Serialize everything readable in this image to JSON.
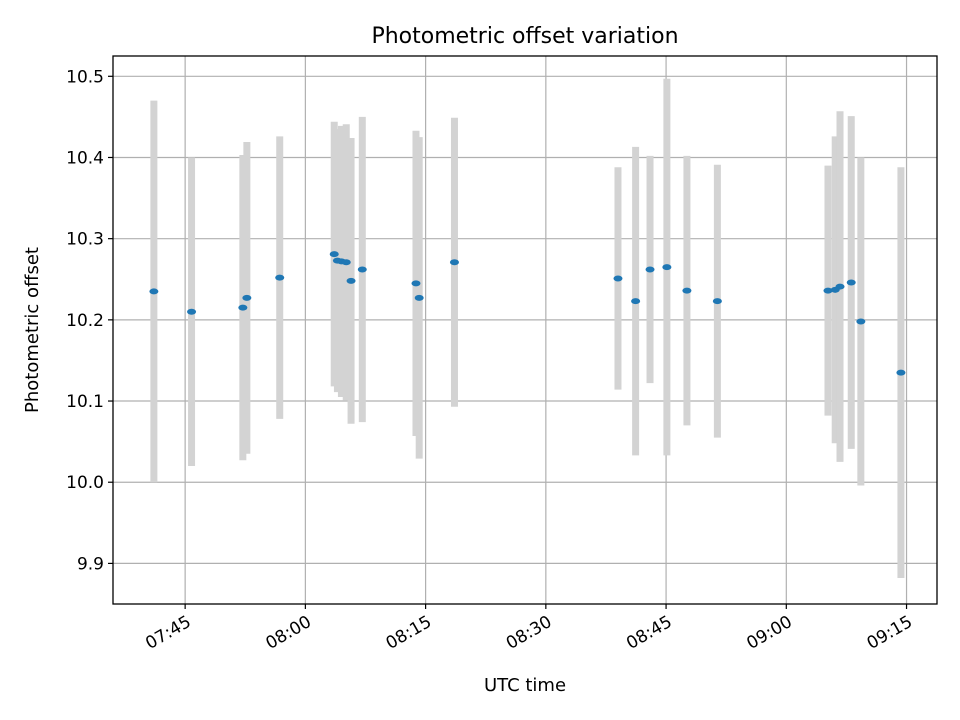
{
  "chart_data": {
    "type": "scatter",
    "title": "Photometric offset variation",
    "xlabel": "UTC time",
    "ylabel": "Photometric offset",
    "x_tick_labels": [
      "07:45",
      "08:00",
      "08:15",
      "08:30",
      "08:45",
      "09:00",
      "09:15"
    ],
    "y_tick_labels": [
      "9.9",
      "10.0",
      "10.1",
      "10.2",
      "10.3",
      "10.4",
      "10.5"
    ],
    "xlim": [
      "07:36",
      "09:18.8"
    ],
    "ylim": [
      9.85,
      10.525
    ],
    "grid": true,
    "colors": {
      "point": "#1f77b4",
      "errorbar": "#d3d3d3",
      "grid": "#b0b0b0"
    },
    "points": [
      {
        "x": "07:41.1",
        "y": 10.235,
        "yerr": 0.235
      },
      {
        "x": "07:45.8",
        "y": 10.21,
        "yerr": 0.19
      },
      {
        "x": "07:52.2",
        "y": 10.215,
        "yerr": 0.188
      },
      {
        "x": "07:52.7",
        "y": 10.227,
        "yerr": 0.192
      },
      {
        "x": "07:56.8",
        "y": 10.252,
        "yerr": 0.174
      },
      {
        "x": "08:03.6",
        "y": 10.281,
        "yerr": 0.163
      },
      {
        "x": "08:04.0",
        "y": 10.273,
        "yerr": 0.162
      },
      {
        "x": "08:04.5",
        "y": 10.272,
        "yerr": 0.167
      },
      {
        "x": "08:05.1",
        "y": 10.271,
        "yerr": 0.17
      },
      {
        "x": "08:05.7",
        "y": 10.248,
        "yerr": 0.176
      },
      {
        "x": "08:07.1",
        "y": 10.262,
        "yerr": 0.188
      },
      {
        "x": "08:13.8",
        "y": 10.245,
        "yerr": 0.188
      },
      {
        "x": "08:14.2",
        "y": 10.227,
        "yerr": 0.198
      },
      {
        "x": "08:18.6",
        "y": 10.271,
        "yerr": 0.178
      },
      {
        "x": "08:39.0",
        "y": 10.251,
        "yerr": 0.137
      },
      {
        "x": "08:41.2",
        "y": 10.223,
        "yerr": 0.19
      },
      {
        "x": "08:43.0",
        "y": 10.262,
        "yerr": 0.14
      },
      {
        "x": "08:45.1",
        "y": 10.265,
        "yerr": 0.232
      },
      {
        "x": "08:47.6",
        "y": 10.236,
        "yerr": 0.166
      },
      {
        "x": "08:51.4",
        "y": 10.223,
        "yerr": 0.168
      },
      {
        "x": "09:05.2",
        "y": 10.236,
        "yerr": 0.154
      },
      {
        "x": "09:06.1",
        "y": 10.237,
        "yerr": 0.189
      },
      {
        "x": "09:06.7",
        "y": 10.241,
        "yerr": 0.216
      },
      {
        "x": "09:08.1",
        "y": 10.246,
        "yerr": 0.205
      },
      {
        "x": "09:09.3",
        "y": 10.198,
        "yerr": 0.202
      },
      {
        "x": "09:14.3",
        "y": 10.135,
        "yerr": 0.253
      }
    ]
  }
}
